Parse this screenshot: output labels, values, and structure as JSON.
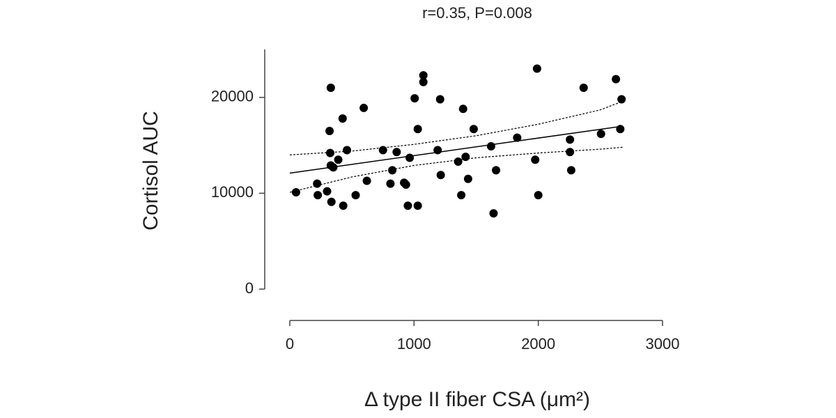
{
  "chart_data": {
    "type": "scatter",
    "title": "r=0.35, P=0.008",
    "x_label": "Δ type II fiber CSA (μm²)",
    "y_label": "Cortisol AUC",
    "xlim": [
      0,
      3000
    ],
    "xticks": [
      0,
      1000,
      2000,
      3000
    ],
    "ylim": [
      0,
      25000
    ],
    "yticks": [
      0,
      10000,
      20000
    ],
    "color": "#000000",
    "x": [
      50,
      220,
      225,
      300,
      320,
      330,
      325,
      330,
      350,
      335,
      390,
      425,
      430,
      460,
      530,
      595,
      620,
      750,
      810,
      825,
      860,
      920,
      935,
      950,
      965,
      1005,
      1030,
      1030,
      1075,
      1075,
      1190,
      1210,
      1215,
      1355,
      1380,
      1395,
      1415,
      1435,
      1480,
      1620,
      1640,
      1660,
      1830,
      1975,
      1990,
      2000,
      2255,
      2255,
      2265,
      2365,
      2505,
      2625,
      2660,
      2670
    ],
    "values": [
      10100,
      11000,
      9800,
      10200,
      16500,
      21000,
      14200,
      12900,
      12700,
      9100,
      13500,
      17800,
      8700,
      14500,
      9800,
      18900,
      11300,
      14500,
      11000,
      12400,
      14300,
      11100,
      10900,
      8700,
      13700,
      19900,
      8700,
      16700,
      22300,
      21600,
      14500,
      19800,
      11900,
      13300,
      9800,
      18800,
      13800,
      11500,
      16700,
      14900,
      7900,
      12400,
      15800,
      13500,
      23000,
      9800,
      15600,
      14300,
      12400,
      21000,
      16200,
      21900,
      16700,
      19800
    ],
    "lines": [
      {
        "style": "solid",
        "x": [
          0,
          2680
        ],
        "values": [
          12100,
          17000
        ]
      },
      {
        "style": "dashed",
        "x": [
          0,
          500,
          1000,
          1500,
          2000,
          2500,
          2680
        ],
        "values": [
          14000,
          14400,
          15100,
          16000,
          17200,
          18700,
          19600
        ]
      },
      {
        "style": "dashed",
        "x": [
          0,
          500,
          1000,
          1500,
          2000,
          2500,
          2680
        ],
        "values": [
          10100,
          11700,
          12900,
          13700,
          14200,
          14600,
          14800
        ]
      }
    ]
  }
}
